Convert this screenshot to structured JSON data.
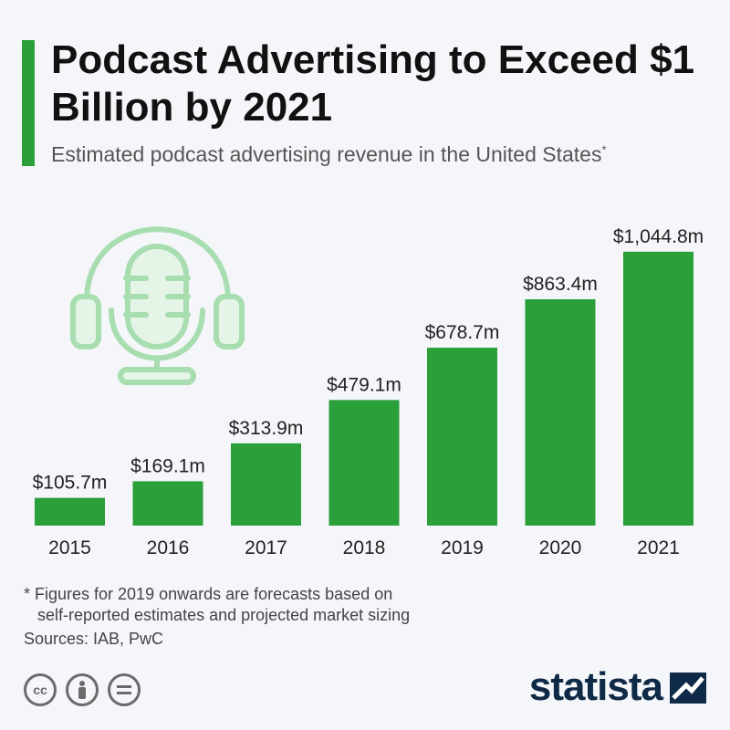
{
  "header": {
    "title": "Podcast Advertising to Exceed $1 Billion by 2021",
    "subtitle": "Estimated podcast advertising revenue in the United States",
    "subtitle_marker": "*"
  },
  "chart_data": {
    "type": "bar",
    "categories": [
      "2015",
      "2016",
      "2017",
      "2018",
      "2019",
      "2020",
      "2021"
    ],
    "values": [
      105.7,
      169.1,
      313.9,
      479.1,
      678.7,
      863.4,
      1044.8
    ],
    "value_labels": [
      "$105.7m",
      "$169.1m",
      "$313.9m",
      "$479.1m",
      "$678.7m",
      "$863.4m",
      "$1,044.8m"
    ],
    "title": "Podcast Advertising to Exceed $1 Billion by 2021",
    "xlabel": "",
    "ylabel": "",
    "ylim": [
      0,
      1100
    ],
    "grid": false,
    "bar_color": "#2b9f3a"
  },
  "footer": {
    "footnote_line1": "* Figures for 2019 onwards are forecasts based on",
    "footnote_line2": "self-reported estimates and projected market sizing",
    "sources": "Sources: IAB, PwC",
    "brand": "statista",
    "cc_icons": [
      "cc-icon",
      "attribution-icon",
      "no-derivatives-icon"
    ]
  },
  "colors": {
    "accent": "#2b9f3a",
    "illustration": "#a8ddb0",
    "brand": "#0f2a47",
    "background": "#f4f6fa"
  }
}
